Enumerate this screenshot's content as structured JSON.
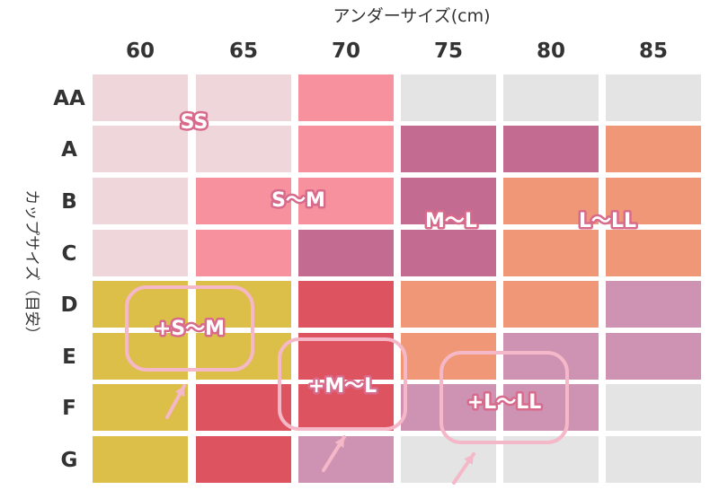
{
  "chart_data": {
    "type": "heatmap",
    "xlabel": "アンダーサイズ(cm)",
    "ylabel": "カップサイズ（目安）",
    "columns": [
      "60",
      "65",
      "70",
      "75",
      "80",
      "85"
    ],
    "rows": [
      "AA",
      "A",
      "B",
      "C",
      "D",
      "E",
      "F",
      "G"
    ],
    "zones": {
      "na": {
        "label": "",
        "color": "#e4e4e4"
      },
      "SS": {
        "label": "SS",
        "color": "#eed6da"
      },
      "SM": {
        "label": "S～M",
        "color": "#f7919d"
      },
      "ML": {
        "label": "M～L",
        "color": "#c46b92"
      },
      "LLL": {
        "label": "L～LL",
        "color": "#ef9776"
      },
      "pSM": {
        "label": "+S～M",
        "color": "#dcbf48"
      },
      "pML": {
        "label": "+M～L",
        "color": "#dd5460"
      },
      "pLLL": {
        "label": "+L～LL",
        "color": "#ce93b3"
      }
    },
    "cells": [
      [
        "SS",
        "SS",
        "SM",
        "na",
        "na",
        "na"
      ],
      [
        "SS",
        "SS",
        "SM",
        "ML",
        "ML",
        "LLL"
      ],
      [
        "SS",
        "SM",
        "SM",
        "ML",
        "LLL",
        "LLL"
      ],
      [
        "SS",
        "SM",
        "ML",
        "ML",
        "LLL",
        "LLL"
      ],
      [
        "pSM",
        "pSM",
        "pML",
        "LLL",
        "LLL",
        "pLLL"
      ],
      [
        "pSM",
        "pSM",
        "pML",
        "LLL",
        "pLLL",
        "pLLL"
      ],
      [
        "pSM",
        "pML",
        "pML",
        "pLLL",
        "pLLL",
        "na"
      ],
      [
        "pSM",
        "pML",
        "pLLL",
        "na",
        "na",
        "na"
      ]
    ],
    "annotation_style": {
      "label_outline_color": "#d86a8c",
      "bubble_color": "#f4b8c8"
    }
  }
}
